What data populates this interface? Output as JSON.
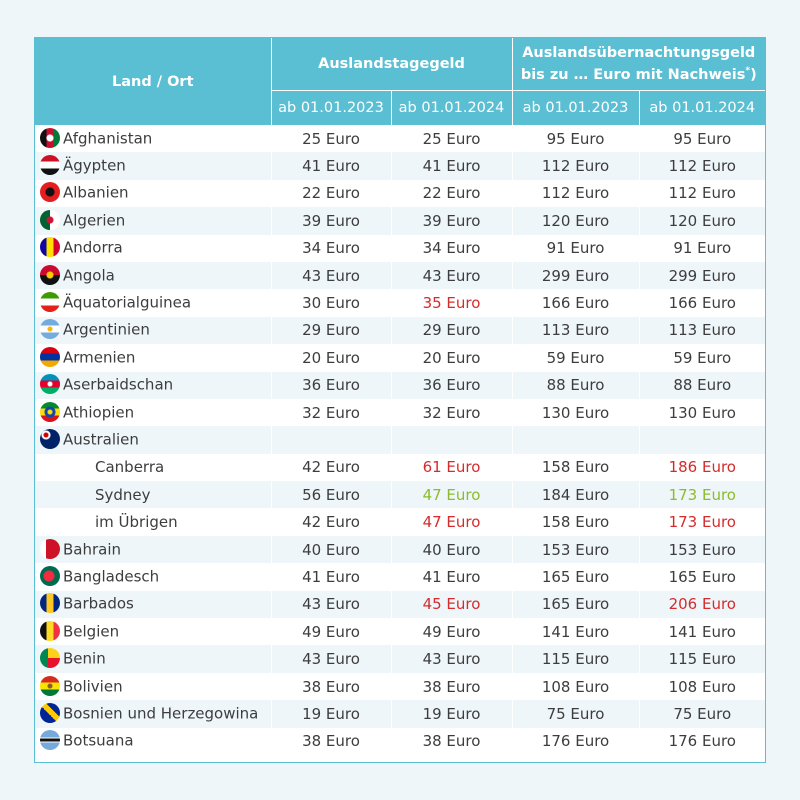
{
  "header": {
    "col_land": "Land / Ort",
    "group1": "Auslandstagegeld",
    "group2_line1": "Auslandsübernachtungsgeld",
    "group2_line2": "bis zu … Euro mit Nachweis",
    "group2_sup": "*",
    "group2_close": ")",
    "sub": [
      "ab 01.01.2023",
      "ab 01.01.2024",
      "ab 01.01.2023",
      "ab 01.01.2024"
    ]
  },
  "colors": {
    "header_bg": "#5bbfd3",
    "increase": "#d52b2b",
    "decrease": "#8dbb2b",
    "stripe": "#eef6fa"
  },
  "rows": [
    {
      "name": "Afghanistan",
      "flag": "flag-afghanistan-icon",
      "c": "radial-gradient(circle,#ffffff 0 3px,transparent 4px),linear-gradient(90deg,#111 0 33%,#c8102e 33% 67%,#007a36 67%)",
      "vals": [
        "25 Euro",
        "25 Euro",
        "95 Euro",
        "95 Euro"
      ],
      "hl": [
        "",
        "",
        "",
        ""
      ]
    },
    {
      "name": "Ägypten",
      "flag": "flag-egypt-icon",
      "c": "linear-gradient(#ce1126 0 33%,#ffffff 33% 67%,#111 67%)",
      "vals": [
        "41 Euro",
        "41 Euro",
        "112 Euro",
        "112 Euro"
      ],
      "hl": [
        "",
        "",
        "",
        ""
      ]
    },
    {
      "name": "Albanien",
      "flag": "flag-albania-icon",
      "c": "radial-gradient(circle,#111 0 4px,#e41e20 5px)",
      "vals": [
        "22 Euro",
        "22 Euro",
        "112 Euro",
        "112 Euro"
      ],
      "hl": [
        "",
        "",
        "",
        ""
      ]
    },
    {
      "name": "Algerien",
      "flag": "flag-algeria-icon",
      "c": "radial-gradient(circle,#d21034 0 3px,transparent 4px),linear-gradient(90deg,#006233 50%,#ffffff 50%)",
      "vals": [
        "39 Euro",
        "39 Euro",
        "120 Euro",
        "120 Euro"
      ],
      "hl": [
        "",
        "",
        "",
        ""
      ]
    },
    {
      "name": "Andorra",
      "flag": "flag-andorra-icon",
      "c": "linear-gradient(90deg,#10069f 0 33%,#fedf00 33% 67%,#d50032 67%)",
      "vals": [
        "34 Euro",
        "34 Euro",
        "91 Euro",
        "91 Euro"
      ],
      "hl": [
        "",
        "",
        "",
        ""
      ]
    },
    {
      "name": "Angola",
      "flag": "flag-angola-icon",
      "c": "radial-gradient(circle,#ffcb00 0 3px,transparent 4px),linear-gradient(#cc092f 50%,#111 50%)",
      "vals": [
        "43 Euro",
        "43 Euro",
        "299 Euro",
        "299 Euro"
      ],
      "hl": [
        "",
        "",
        "",
        ""
      ]
    },
    {
      "name": "Äquatorialguinea",
      "flag": "flag-equatorial-guinea-icon",
      "c": "linear-gradient(#3e9a00 0 33%,#ffffff 33% 67%,#e32118 67%)",
      "vals": [
        "30 Euro",
        "35 Euro",
        "166 Euro",
        "166 Euro"
      ],
      "hl": [
        "",
        "red",
        "",
        ""
      ]
    },
    {
      "name": "Argentinien",
      "flag": "flag-argentina-icon",
      "c": "radial-gradient(circle,#f6b40e 0 2px,transparent 3px),linear-gradient(#74acdf 0 33%,#ffffff 33% 67%,#74acdf 67%)",
      "vals": [
        "29 Euro",
        "29 Euro",
        "113 Euro",
        "113 Euro"
      ],
      "hl": [
        "",
        "",
        "",
        ""
      ]
    },
    {
      "name": "Armenien",
      "flag": "flag-armenia-icon",
      "c": "linear-gradient(#d90012 0 33%,#0033a0 33% 67%,#f2a800 67%)",
      "vals": [
        "20 Euro",
        "20 Euro",
        "59 Euro",
        "59 Euro"
      ],
      "hl": [
        "",
        "",
        "",
        ""
      ]
    },
    {
      "name": "Aserbaidschan",
      "flag": "flag-azerbaijan-icon",
      "c": "radial-gradient(circle,#ffffff 0 2px,transparent 3px),linear-gradient(#0092bc 0 33%,#e4002b 33% 67%,#00af66 67%)",
      "vals": [
        "36 Euro",
        "36 Euro",
        "88 Euro",
        "88 Euro"
      ],
      "hl": [
        "",
        "",
        "",
        ""
      ]
    },
    {
      "name": "Athiopien",
      "flag": "flag-ethiopia-icon",
      "c": "radial-gradient(circle,#fcdd09 0 2px,#0f47af 3px 5px,transparent 6px),linear-gradient(#078930 0 33%,#fcdd09 33% 67%,#da121a 67%)",
      "vals": [
        "32 Euro",
        "32 Euro",
        "130 Euro",
        "130 Euro"
      ],
      "hl": [
        "",
        "",
        "",
        ""
      ]
    },
    {
      "name": "Australien",
      "flag": "flag-australia-icon",
      "c": "radial-gradient(circle at 30% 30%,#cc0000 0 2px,#ffffff 3px 4px,transparent 5px),#012169",
      "vals": [
        "",
        "",
        "",
        ""
      ],
      "hl": [
        "",
        "",
        "",
        ""
      ]
    },
    {
      "name": "Canberra",
      "sub": true,
      "vals": [
        "42 Euro",
        "61 Euro",
        "158 Euro",
        "186 Euro"
      ],
      "hl": [
        "",
        "red",
        "",
        "red"
      ]
    },
    {
      "name": "Sydney",
      "sub": true,
      "vals": [
        "56 Euro",
        "47 Euro",
        "184 Euro",
        "173 Euro"
      ],
      "hl": [
        "",
        "green",
        "",
        "green"
      ]
    },
    {
      "name": "im Übrigen",
      "sub": true,
      "vals": [
        "42 Euro",
        "47 Euro",
        "158 Euro",
        "173 Euro"
      ],
      "hl": [
        "",
        "red",
        "",
        "red"
      ]
    },
    {
      "name": "Bahrain",
      "flag": "flag-bahrain-icon",
      "c": "linear-gradient(90deg,#ffffff 30%,#ce1126 30%)",
      "vals": [
        "40 Euro",
        "40 Euro",
        "153 Euro",
        "153 Euro"
      ],
      "hl": [
        "",
        "",
        "",
        ""
      ]
    },
    {
      "name": "Bangladesch",
      "flag": "flag-bangladesh-icon",
      "c": "radial-gradient(circle at 45% 50%,#f42a41 0 5px,#006a4e 6px)",
      "vals": [
        "41 Euro",
        "41 Euro",
        "165 Euro",
        "165 Euro"
      ],
      "hl": [
        "",
        "",
        "",
        ""
      ]
    },
    {
      "name": "Barbados",
      "flag": "flag-barbados-icon",
      "c": "linear-gradient(90deg,#00267f 0 33%,#ffc726 33% 67%,#00267f 67%)",
      "vals": [
        "43 Euro",
        "45 Euro",
        "165 Euro",
        "206 Euro"
      ],
      "hl": [
        "",
        "red",
        "",
        "red"
      ]
    },
    {
      "name": "Belgien",
      "flag": "flag-belgium-icon",
      "c": "linear-gradient(90deg,#111 0 33%,#fdda24 33% 67%,#ef3340 67%)",
      "vals": [
        "49 Euro",
        "49 Euro",
        "141 Euro",
        "141 Euro"
      ],
      "hl": [
        "",
        "",
        "",
        ""
      ]
    },
    {
      "name": "Benin",
      "flag": "flag-benin-icon",
      "c": "linear-gradient(90deg,#008751 40%,transparent 40%),linear-gradient(#fcd116 50%,#e8112d 50%)",
      "vals": [
        "43 Euro",
        "43 Euro",
        "115 Euro",
        "115 Euro"
      ],
      "hl": [
        "",
        "",
        "",
        ""
      ]
    },
    {
      "name": "Bolivien",
      "flag": "flag-bolivia-icon",
      "c": "radial-gradient(circle,#8a5a2b 0 2px,transparent 3px),linear-gradient(#d52b1e 0 33%,#f9e300 33% 67%,#007934 67%)",
      "vals": [
        "38 Euro",
        "38 Euro",
        "108 Euro",
        "108 Euro"
      ],
      "hl": [
        "",
        "",
        "",
        ""
      ]
    },
    {
      "name": "Bosnien und Herzegowina",
      "flag": "flag-bosnia-icon",
      "c": "linear-gradient(45deg,#002395 45%,#fecb00 45% 65%,#002395 65%)",
      "vals": [
        "19 Euro",
        "19 Euro",
        "75 Euro",
        "75 Euro"
      ],
      "hl": [
        "",
        "",
        "",
        ""
      ]
    },
    {
      "name": "Botsuana",
      "flag": "flag-botswana-icon",
      "c": "linear-gradient(#75aadb 0 38%,#ffffff 38% 42%,#111 42% 58%,#ffffff 58% 62%,#75aadb 62%)",
      "vals": [
        "38 Euro",
        "38 Euro",
        "176 Euro",
        "176 Euro"
      ],
      "hl": [
        "",
        "",
        "",
        ""
      ]
    }
  ]
}
